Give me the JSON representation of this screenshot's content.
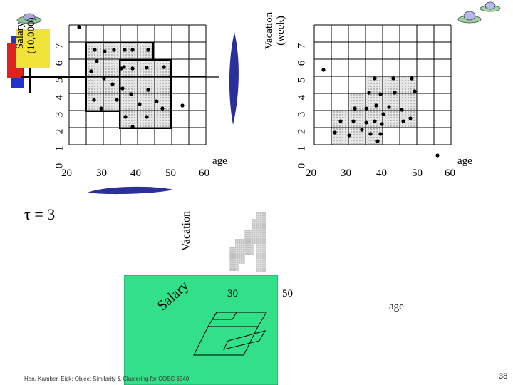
{
  "left_grid": {
    "x_ticks": [
      "20",
      "30",
      "40",
      "50",
      "60"
    ],
    "x_label": "age",
    "y_ticks": [
      "0",
      "1",
      "2",
      "3",
      "4",
      "5",
      "6",
      "7"
    ],
    "y_label_line1": "Salary",
    "y_label_line2": "(10,000)"
  },
  "right_grid": {
    "x_ticks": [
      "20",
      "30",
      "40",
      "50",
      "60"
    ],
    "x_label": "age",
    "y_ticks": [
      "0",
      "1",
      "2",
      "3",
      "4",
      "5",
      "6",
      "7"
    ],
    "y_label_line1": "Vacation",
    "y_label_line2": "(week)"
  },
  "tau_label": "τ = 3",
  "vacation_label": "Vacation",
  "salary_label": "Salary",
  "cube_x_ticks": [
    "30",
    "50"
  ],
  "cube_age_label": "age",
  "footer": "Han, Kamber, Eick: Object Similarity & Clustering for COSC 6340",
  "page_number": "38",
  "colors": {
    "accent_blue": "#2a2f9a",
    "green_plane": "#33e08a",
    "dense_gray": "#cfcfcf"
  }
}
